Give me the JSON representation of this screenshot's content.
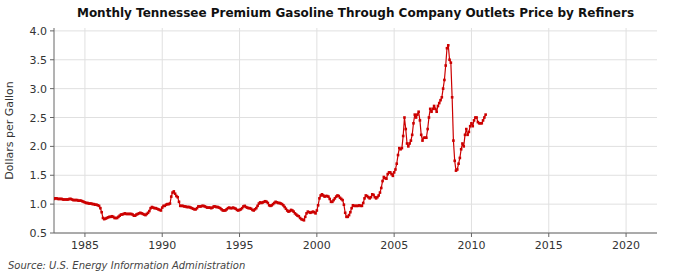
{
  "chart_data": {
    "type": "line",
    "title": "Monthly Tennessee Premium Gasoline Through Company Outlets Price by Refiners",
    "ylabel": "Dollars per Gallon",
    "source": "Source: U.S. Energy Information Administration",
    "color": "#cc0000",
    "marker": "square",
    "grid": true,
    "xlim": [
      1983.0,
      2022.0
    ],
    "ylim": [
      0.5,
      4.05
    ],
    "xticks": [
      1985,
      1990,
      1995,
      2000,
      2005,
      2010,
      2015,
      2020
    ],
    "yticks": [
      0.5,
      {
        "value": 1.0,
        "label": "1.0"
      },
      1.5,
      {
        "value": 2.0,
        "label": "2.0"
      },
      2.5,
      {
        "value": 3.0,
        "label": "3.0"
      },
      3.5,
      {
        "value": 4.0,
        "label": "4.0"
      }
    ],
    "x": [
      1983,
      1983.083333,
      1983.166667,
      1983.25,
      1983.333333,
      1983.416667,
      1983.5,
      1983.583333,
      1983.666667,
      1983.75,
      1983.833333,
      1983.916667,
      1984,
      1984.083333,
      1984.166667,
      1984.25,
      1984.333333,
      1984.416667,
      1984.5,
      1984.583333,
      1984.666667,
      1984.75,
      1984.833333,
      1984.916667,
      1985,
      1985.083333,
      1985.166667,
      1985.25,
      1985.333333,
      1985.416667,
      1985.5,
      1985.583333,
      1985.666667,
      1985.75,
      1985.833333,
      1985.916667,
      1986,
      1986.083333,
      1986.166667,
      1986.25,
      1986.333333,
      1986.416667,
      1986.5,
      1986.583333,
      1986.666667,
      1986.75,
      1986.833333,
      1986.916667,
      1987,
      1987.083333,
      1987.166667,
      1987.25,
      1987.333333,
      1987.416667,
      1987.5,
      1987.583333,
      1987.666667,
      1987.75,
      1987.833333,
      1987.916667,
      1988,
      1988.083333,
      1988.166667,
      1988.25,
      1988.333333,
      1988.416667,
      1988.5,
      1988.583333,
      1988.666667,
      1988.75,
      1988.833333,
      1988.916667,
      1989,
      1989.083333,
      1989.166667,
      1989.25,
      1989.333333,
      1989.416667,
      1989.5,
      1989.583333,
      1989.666667,
      1989.75,
      1989.833333,
      1989.916667,
      1990,
      1990.083333,
      1990.166667,
      1990.25,
      1990.333333,
      1990.416667,
      1990.5,
      1990.583333,
      1990.666667,
      1990.75,
      1990.833333,
      1990.916667,
      1991,
      1991.083333,
      1991.166667,
      1991.25,
      1991.333333,
      1991.416667,
      1991.5,
      1991.583333,
      1991.666667,
      1991.75,
      1991.833333,
      1991.916667,
      1992,
      1992.083333,
      1992.166667,
      1992.25,
      1992.333333,
      1992.416667,
      1992.5,
      1992.583333,
      1992.666667,
      1992.75,
      1992.833333,
      1992.916667,
      1993,
      1993.083333,
      1993.166667,
      1993.25,
      1993.333333,
      1993.416667,
      1993.5,
      1993.583333,
      1993.666667,
      1993.75,
      1993.833333,
      1993.916667,
      1994,
      1994.083333,
      1994.166667,
      1994.25,
      1994.333333,
      1994.416667,
      1994.5,
      1994.583333,
      1994.666667,
      1994.75,
      1994.833333,
      1994.916667,
      1995,
      1995.083333,
      1995.166667,
      1995.25,
      1995.333333,
      1995.416667,
      1995.5,
      1995.583333,
      1995.666667,
      1995.75,
      1995.833333,
      1995.916667,
      1996,
      1996.083333,
      1996.166667,
      1996.25,
      1996.333333,
      1996.416667,
      1996.5,
      1996.583333,
      1996.666667,
      1996.75,
      1996.833333,
      1996.916667,
      1997,
      1997.083333,
      1997.166667,
      1997.25,
      1997.333333,
      1997.416667,
      1997.5,
      1997.583333,
      1997.666667,
      1997.75,
      1997.833333,
      1997.916667,
      1998,
      1998.083333,
      1998.166667,
      1998.25,
      1998.333333,
      1998.416667,
      1998.5,
      1998.583333,
      1998.666667,
      1998.75,
      1998.833333,
      1998.916667,
      1999,
      1999.083333,
      1999.166667,
      1999.25,
      1999.333333,
      1999.416667,
      1999.5,
      1999.583333,
      1999.666667,
      1999.75,
      1999.833333,
      1999.916667,
      2000,
      2000.083333,
      2000.166667,
      2000.25,
      2000.333333,
      2000.416667,
      2000.5,
      2000.583333,
      2000.666667,
      2000.75,
      2000.833333,
      2000.916667,
      2001,
      2001.083333,
      2001.166667,
      2001.25,
      2001.333333,
      2001.416667,
      2001.5,
      2001.583333,
      2001.666667,
      2001.75,
      2001.833333,
      2001.916667,
      2002,
      2002.083333,
      2002.166667,
      2002.25,
      2002.333333,
      2002.416667,
      2002.5,
      2002.583333,
      2002.666667,
      2002.75,
      2002.833333,
      2002.916667,
      2003,
      2003.083333,
      2003.166667,
      2003.25,
      2003.333333,
      2003.416667,
      2003.5,
      2003.583333,
      2003.666667,
      2003.75,
      2003.833333,
      2003.916667,
      2004,
      2004.083333,
      2004.166667,
      2004.25,
      2004.333333,
      2004.416667,
      2004.5,
      2004.583333,
      2004.666667,
      2004.75,
      2004.833333,
      2004.916667,
      2005,
      2005.083333,
      2005.166667,
      2005.25,
      2005.333333,
      2005.416667,
      2005.5,
      2005.583333,
      2005.666667,
      2005.75,
      2005.833333,
      2005.916667,
      2006,
      2006.083333,
      2006.166667,
      2006.25,
      2006.333333,
      2006.416667,
      2006.5,
      2006.583333,
      2006.666667,
      2006.75,
      2006.833333,
      2006.916667,
      2007,
      2007.083333,
      2007.166667,
      2007.25,
      2007.333333,
      2007.416667,
      2007.5,
      2007.583333,
      2007.666667,
      2007.75,
      2007.833333,
      2007.916667,
      2008,
      2008.083333,
      2008.166667,
      2008.25,
      2008.333333,
      2008.416667,
      2008.5,
      2008.583333,
      2008.666667,
      2008.75,
      2008.833333,
      2008.916667,
      2009,
      2009.083333,
      2009.166667,
      2009.25,
      2009.333333,
      2009.416667,
      2009.5,
      2009.583333,
      2009.666667,
      2009.75,
      2009.833333,
      2009.916667,
      2010,
      2010.083333,
      2010.166667,
      2010.25,
      2010.333333,
      2010.416667,
      2010.5,
      2010.583333,
      2010.666667,
      2010.75,
      2010.833333,
      2010.916667
    ],
    "values": [
      1.09,
      1.1,
      1.1,
      1.09,
      1.09,
      1.09,
      1.09,
      1.08,
      1.08,
      1.08,
      1.08,
      1.08,
      1.09,
      1.09,
      1.08,
      1.07,
      1.07,
      1.07,
      1.07,
      1.06,
      1.06,
      1.06,
      1.05,
      1.04,
      1.03,
      1.02,
      1.02,
      1.01,
      1.01,
      1.01,
      1.0,
      1.0,
      0.99,
      0.99,
      0.98,
      0.97,
      0.93,
      0.86,
      0.76,
      0.74,
      0.75,
      0.76,
      0.77,
      0.78,
      0.78,
      0.79,
      0.78,
      0.76,
      0.76,
      0.76,
      0.78,
      0.8,
      0.82,
      0.82,
      0.83,
      0.84,
      0.83,
      0.83,
      0.83,
      0.83,
      0.83,
      0.82,
      0.8,
      0.8,
      0.82,
      0.83,
      0.84,
      0.85,
      0.84,
      0.83,
      0.82,
      0.81,
      0.83,
      0.85,
      0.88,
      0.93,
      0.95,
      0.94,
      0.93,
      0.93,
      0.92,
      0.91,
      0.9,
      0.89,
      0.94,
      0.97,
      0.97,
      0.99,
      1.0,
      1.0,
      1.01,
      1.13,
      1.2,
      1.22,
      1.18,
      1.14,
      1.12,
      1.04,
      0.97,
      0.97,
      0.97,
      0.96,
      0.96,
      0.95,
      0.95,
      0.95,
      0.94,
      0.93,
      0.92,
      0.91,
      0.91,
      0.93,
      0.96,
      0.96,
      0.96,
      0.97,
      0.97,
      0.96,
      0.95,
      0.94,
      0.94,
      0.94,
      0.93,
      0.94,
      0.96,
      0.96,
      0.95,
      0.95,
      0.94,
      0.93,
      0.91,
      0.89,
      0.89,
      0.89,
      0.91,
      0.93,
      0.94,
      0.93,
      0.93,
      0.94,
      0.93,
      0.92,
      0.9,
      0.89,
      0.9,
      0.91,
      0.93,
      0.96,
      0.97,
      0.95,
      0.94,
      0.93,
      0.93,
      0.92,
      0.9,
      0.89,
      0.91,
      0.93,
      0.97,
      1.01,
      1.03,
      1.02,
      1.03,
      1.04,
      1.05,
      1.04,
      1.02,
      0.98,
      0.97,
      0.98,
      1.0,
      1.02,
      1.04,
      1.03,
      1.02,
      1.02,
      1.01,
      1.0,
      0.98,
      0.95,
      0.92,
      0.89,
      0.87,
      0.88,
      0.9,
      0.89,
      0.87,
      0.84,
      0.82,
      0.8,
      0.79,
      0.76,
      0.74,
      0.73,
      0.72,
      0.78,
      0.84,
      0.87,
      0.86,
      0.85,
      0.86,
      0.87,
      0.86,
      0.84,
      0.89,
      0.98,
      1.1,
      1.15,
      1.17,
      1.15,
      1.13,
      1.14,
      1.14,
      1.13,
      1.09,
      1.04,
      1.04,
      1.07,
      1.1,
      1.13,
      1.15,
      1.14,
      1.11,
      1.09,
      1.07,
      0.99,
      0.85,
      0.78,
      0.78,
      0.81,
      0.86,
      0.93,
      0.98,
      0.97,
      0.97,
      0.97,
      0.97,
      0.98,
      0.97,
      0.97,
      1.02,
      1.1,
      1.15,
      1.14,
      1.12,
      1.1,
      1.12,
      1.17,
      1.16,
      1.12,
      1.1,
      1.12,
      1.15,
      1.2,
      1.28,
      1.4,
      1.47,
      1.45,
      1.44,
      1.52,
      1.55,
      1.55,
      1.52,
      1.49,
      1.55,
      1.6,
      1.7,
      1.85,
      1.97,
      1.95,
      1.97,
      2.18,
      2.5,
      2.3,
      2.05,
      2.0,
      2.05,
      2.1,
      2.2,
      2.4,
      2.55,
      2.5,
      2.55,
      2.6,
      2.45,
      2.2,
      2.1,
      2.15,
      2.15,
      2.15,
      2.3,
      2.5,
      2.65,
      2.6,
      2.65,
      2.7,
      2.65,
      2.6,
      2.7,
      2.75,
      2.8,
      2.85,
      3.0,
      3.15,
      3.4,
      3.7,
      3.75,
      3.5,
      3.45,
      2.85,
      2.1,
      1.75,
      1.58,
      1.6,
      1.7,
      1.8,
      1.95,
      2.05,
      2.0,
      2.2,
      2.3,
      2.2,
      2.25,
      2.35,
      2.4,
      2.35,
      2.45,
      2.5,
      2.5,
      2.42,
      2.4,
      2.4,
      2.4,
      2.45,
      2.5,
      2.55
    ]
  }
}
